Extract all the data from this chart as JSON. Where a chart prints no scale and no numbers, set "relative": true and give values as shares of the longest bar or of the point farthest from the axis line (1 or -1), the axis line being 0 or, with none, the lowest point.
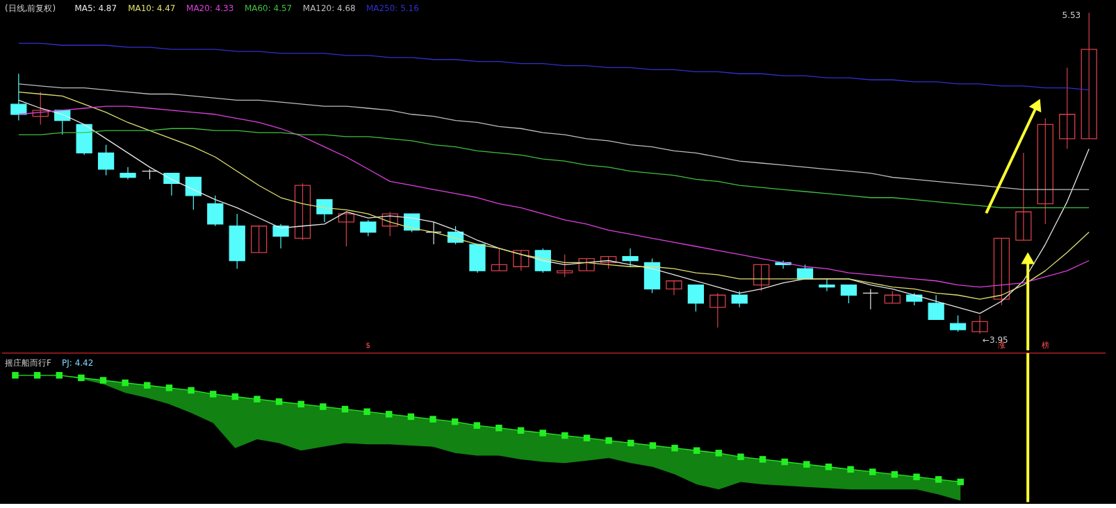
{
  "chart_data": [
    {
      "type": "candlestick",
      "title": "(日线,前复权)",
      "legend": "top left",
      "tick_labels": false,
      "categories": [
        null,
        null,
        null,
        null,
        null,
        null,
        null,
        null,
        null,
        null,
        null,
        null,
        null,
        null,
        null,
        null,
        null,
        null,
        null,
        null,
        null,
        null,
        null,
        null,
        null,
        null,
        null,
        null,
        null,
        null,
        null,
        null,
        null,
        null,
        null,
        null,
        null,
        null,
        null,
        null,
        null,
        null,
        null,
        null,
        null,
        null,
        null,
        null,
        null,
        null
      ],
      "ohlc": [
        [
          5.08,
          5.23,
          5.0,
          5.03
        ],
        [
          5.02,
          5.14,
          4.98,
          5.05
        ],
        [
          5.05,
          5.05,
          4.93,
          5.0
        ],
        [
          4.98,
          4.98,
          4.83,
          4.84
        ],
        [
          4.84,
          4.88,
          4.73,
          4.76
        ],
        [
          4.74,
          4.77,
          4.71,
          4.72
        ],
        [
          4.75,
          4.76,
          4.71,
          4.75
        ],
        [
          4.74,
          4.74,
          4.63,
          4.69
        ],
        [
          4.72,
          4.72,
          4.56,
          4.63
        ],
        [
          4.59,
          4.63,
          4.48,
          4.49
        ],
        [
          4.48,
          4.54,
          4.27,
          4.31
        ],
        [
          4.35,
          4.48,
          4.35,
          4.48
        ],
        [
          4.48,
          4.49,
          4.37,
          4.43
        ],
        [
          4.42,
          4.69,
          4.41,
          4.68
        ],
        [
          4.61,
          4.61,
          4.5,
          4.54
        ],
        [
          4.5,
          4.55,
          4.38,
          4.54
        ],
        [
          4.5,
          4.51,
          4.43,
          4.45
        ],
        [
          4.48,
          4.55,
          4.43,
          4.54
        ],
        [
          4.54,
          4.54,
          4.45,
          4.46
        ],
        [
          4.45,
          4.5,
          4.39,
          4.45
        ],
        [
          4.45,
          4.48,
          4.39,
          4.4
        ],
        [
          4.39,
          4.39,
          4.25,
          4.26
        ],
        [
          4.26,
          4.37,
          4.26,
          4.29
        ],
        [
          4.28,
          4.36,
          4.26,
          4.36
        ],
        [
          4.36,
          4.37,
          4.25,
          4.26
        ],
        [
          4.25,
          4.34,
          4.23,
          4.26
        ],
        [
          4.26,
          4.32,
          4.26,
          4.32
        ],
        [
          4.3,
          4.33,
          4.27,
          4.33
        ],
        [
          4.33,
          4.37,
          4.28,
          4.31
        ],
        [
          4.3,
          4.32,
          4.15,
          4.17
        ],
        [
          4.17,
          4.21,
          4.14,
          4.21
        ],
        [
          4.19,
          4.19,
          4.06,
          4.1
        ],
        [
          4.08,
          4.15,
          3.98,
          4.14
        ],
        [
          4.14,
          4.16,
          4.08,
          4.1
        ],
        [
          4.19,
          4.29,
          4.16,
          4.29
        ],
        [
          4.3,
          4.31,
          4.27,
          4.29
        ],
        [
          4.27,
          4.29,
          4.22,
          4.22
        ],
        [
          4.19,
          4.22,
          4.16,
          4.18
        ],
        [
          4.19,
          4.19,
          4.1,
          4.14
        ],
        [
          4.15,
          4.17,
          4.07,
          4.15
        ],
        [
          4.1,
          4.16,
          4.1,
          4.14
        ],
        [
          4.14,
          4.15,
          4.09,
          4.11
        ],
        [
          4.1,
          4.14,
          4.02,
          4.02
        ],
        [
          4.0,
          4.04,
          3.96,
          3.97
        ],
        [
          3.96,
          4.04,
          3.95,
          4.01
        ],
        [
          4.12,
          4.42,
          4.09,
          4.42
        ],
        [
          4.41,
          4.84,
          4.41,
          4.55
        ],
        [
          4.59,
          5.01,
          4.49,
          4.98
        ],
        [
          4.91,
          5.26,
          4.86,
          5.03
        ],
        [
          4.91,
          5.53,
          4.91,
          5.35
        ]
      ],
      "colors": [
        "#54fcfc",
        "#d8404c",
        "#54fcfc",
        "#54fcfc",
        "#54fcfc",
        "#54fcfc",
        "#e6e6e6",
        "#54fcfc",
        "#54fcfc",
        "#54fcfc",
        "#54fcfc",
        "#d8404c",
        "#54fcfc",
        "#d8404c",
        "#54fcfc",
        "#d8404c",
        "#54fcfc",
        "#d8404c",
        "#54fcfc",
        "#e6e6e6",
        "#54fcfc",
        "#54fcfc",
        "#d8404c",
        "#d8404c",
        "#54fcfc",
        "#d8404c",
        "#d8404c",
        "#d8404c",
        "#54fcfc",
        "#54fcfc",
        "#d8404c",
        "#54fcfc",
        "#d8404c",
        "#54fcfc",
        "#d8404c",
        "#54fcfc",
        "#54fcfc",
        "#54fcfc",
        "#54fcfc",
        "#e6e6e6",
        "#d8404c",
        "#54fcfc",
        "#54fcfc",
        "#54fcfc",
        "#d8404c",
        "#d8404c",
        "#d8404c",
        "#d8404c",
        "#d8404c",
        "#d8404c"
      ],
      "series": [
        {
          "name": "MA5: 4.87",
          "type": "line",
          "color": "#e8e8e8",
          "values": [
            5.1,
            5.06,
            5.03,
            4.98,
            4.91,
            4.84,
            4.77,
            4.71,
            4.66,
            4.61,
            4.57,
            4.52,
            4.47,
            4.48,
            4.49,
            4.55,
            4.52,
            4.53,
            4.52,
            4.5,
            4.46,
            4.41,
            4.37,
            4.34,
            4.31,
            4.29,
            4.3,
            4.31,
            4.29,
            4.27,
            4.24,
            4.21,
            4.18,
            4.15,
            4.17,
            4.2,
            4.22,
            4.22,
            4.22,
            4.19,
            4.17,
            4.14,
            4.11,
            4.08,
            4.05,
            4.11,
            4.21,
            4.39,
            4.6,
            4.86
          ]
        },
        {
          "name": "MA10: 4.47",
          "type": "line",
          "color": "#e0e070",
          "values": [
            5.14,
            5.13,
            5.12,
            5.08,
            5.04,
            4.99,
            4.95,
            4.91,
            4.87,
            4.82,
            4.75,
            4.68,
            4.62,
            4.59,
            4.57,
            4.56,
            4.54,
            4.5,
            4.47,
            4.45,
            4.42,
            4.39,
            4.37,
            4.34,
            4.32,
            4.3,
            4.3,
            4.29,
            4.28,
            4.28,
            4.27,
            4.25,
            4.24,
            4.22,
            4.22,
            4.22,
            4.22,
            4.22,
            4.22,
            4.2,
            4.18,
            4.17,
            4.15,
            4.14,
            4.12,
            4.14,
            4.19,
            4.26,
            4.35,
            4.45
          ]
        },
        {
          "name": "MA20: 4.33",
          "type": "line",
          "color": "#e040e0",
          "values": [
            5.03,
            5.04,
            5.05,
            5.06,
            5.07,
            5.07,
            5.06,
            5.05,
            5.04,
            5.03,
            5.01,
            4.99,
            4.96,
            4.92,
            4.87,
            4.82,
            4.76,
            4.7,
            4.68,
            4.66,
            4.64,
            4.62,
            4.59,
            4.57,
            4.54,
            4.51,
            4.49,
            4.46,
            4.44,
            4.42,
            4.4,
            4.38,
            4.36,
            4.34,
            4.32,
            4.3,
            4.28,
            4.27,
            4.25,
            4.24,
            4.23,
            4.22,
            4.21,
            4.19,
            4.18,
            4.19,
            4.2,
            4.23,
            4.26,
            4.31
          ]
        },
        {
          "name": "MA60: 4.57",
          "type": "line",
          "color": "#40c040",
          "values": [
            4.93,
            4.93,
            4.94,
            4.94,
            4.95,
            4.95,
            4.95,
            4.96,
            4.96,
            4.95,
            4.95,
            4.94,
            4.94,
            4.93,
            4.93,
            4.92,
            4.92,
            4.91,
            4.9,
            4.88,
            4.87,
            4.85,
            4.84,
            4.83,
            4.81,
            4.8,
            4.78,
            4.77,
            4.75,
            4.74,
            4.73,
            4.71,
            4.7,
            4.68,
            4.67,
            4.66,
            4.65,
            4.64,
            4.63,
            4.62,
            4.62,
            4.61,
            4.6,
            4.59,
            4.58,
            4.57,
            4.57,
            4.57,
            4.57,
            4.57
          ]
        },
        {
          "name": "MA120: 4.68",
          "type": "line",
          "color": "#bdbdbd",
          "values": [
            5.18,
            5.17,
            5.16,
            5.16,
            5.15,
            5.14,
            5.13,
            5.13,
            5.12,
            5.11,
            5.1,
            5.1,
            5.09,
            5.08,
            5.07,
            5.07,
            5.06,
            5.05,
            5.03,
            5.02,
            5.0,
            4.99,
            4.97,
            4.96,
            4.94,
            4.93,
            4.91,
            4.9,
            4.88,
            4.87,
            4.85,
            4.84,
            4.82,
            4.8,
            4.79,
            4.78,
            4.77,
            4.76,
            4.75,
            4.74,
            4.72,
            4.71,
            4.7,
            4.69,
            4.68,
            4.67,
            4.66,
            4.66,
            4.66,
            4.66
          ]
        },
        {
          "name": "MA250: 5.16",
          "type": "line",
          "color": "#3030d0",
          "values": [
            5.38,
            5.38,
            5.37,
            5.37,
            5.37,
            5.36,
            5.36,
            5.35,
            5.35,
            5.35,
            5.34,
            5.34,
            5.33,
            5.33,
            5.33,
            5.32,
            5.32,
            5.31,
            5.31,
            5.3,
            5.3,
            5.29,
            5.29,
            5.28,
            5.28,
            5.27,
            5.27,
            5.26,
            5.26,
            5.25,
            5.25,
            5.24,
            5.24,
            5.23,
            5.23,
            5.22,
            5.22,
            5.21,
            5.21,
            5.2,
            5.2,
            5.19,
            5.19,
            5.18,
            5.18,
            5.17,
            5.17,
            5.16,
            5.16,
            5.15
          ]
        }
      ],
      "annotations": [
        "5.53",
        "←3.95",
        "$",
        "涨",
        "榜"
      ]
    },
    {
      "type": "line",
      "title": "摇庄船而行F",
      "relative": true,
      "tick_labels": false,
      "marker": "square",
      "categories": [
        null,
        null,
        null,
        null,
        null,
        null,
        null,
        null,
        null,
        null,
        null,
        null,
        null,
        null,
        null,
        null,
        null,
        null,
        null,
        null,
        null,
        null,
        null,
        null,
        null,
        null,
        null,
        null,
        null,
        null,
        null,
        null,
        null,
        null,
        null,
        null,
        null,
        null,
        null,
        null,
        null,
        null,
        null,
        null,
        null,
        null,
        null,
        null,
        null,
        null
      ],
      "series": [
        {
          "type": "line",
          "color": "#22ee22",
          "values": [
            1.0,
            1.0,
            1.0,
            0.98,
            0.96,
            0.94,
            0.92,
            0.9,
            0.88,
            0.85,
            0.83,
            0.81,
            0.79,
            0.77,
            0.75,
            0.73,
            0.71,
            0.69,
            0.67,
            0.65,
            0.63,
            0.6,
            0.58,
            0.56,
            0.54,
            0.52,
            0.5,
            0.48,
            0.46,
            0.44,
            0.42,
            0.4,
            0.38,
            0.35,
            0.33,
            0.31,
            0.29,
            0.27,
            0.25,
            0.23,
            0.21,
            0.19,
            0.17,
            0.15,
            null,
            null,
            null,
            null,
            null,
            null
          ],
          "upper": [
            1.0,
            1.0,
            1.0,
            0.98,
            0.96,
            0.94,
            0.92,
            0.9,
            0.88,
            0.85,
            0.83,
            0.81,
            0.79,
            0.77,
            0.75,
            0.73,
            0.71,
            0.69,
            0.67,
            0.65,
            0.63,
            0.6,
            0.58,
            0.56,
            0.54,
            0.52,
            0.5,
            0.48,
            0.46,
            0.44,
            0.42,
            0.4,
            0.38,
            0.35,
            0.33,
            0.31,
            0.29,
            0.27,
            0.25,
            0.23,
            0.21,
            0.19,
            0.17,
            0.15,
            null,
            null,
            null,
            null,
            null,
            null
          ],
          "lower": [
            1.0,
            1.0,
            1.0,
            0.97,
            0.93,
            0.86,
            0.82,
            0.77,
            0.7,
            0.62,
            0.42,
            0.49,
            0.46,
            0.4,
            0.43,
            0.46,
            0.45,
            0.45,
            0.44,
            0.43,
            0.38,
            0.36,
            0.36,
            0.33,
            0.31,
            0.3,
            0.32,
            0.34,
            0.3,
            0.27,
            0.21,
            0.13,
            0.09,
            0.15,
            0.13,
            0.12,
            0.11,
            0.1,
            0.09,
            0.09,
            0.09,
            0.09,
            0.05,
            0.0,
            null,
            null,
            null,
            null,
            null,
            null
          ]
        }
      ],
      "annotations": [
        "PJ: 4.42"
      ]
    }
  ]
}
